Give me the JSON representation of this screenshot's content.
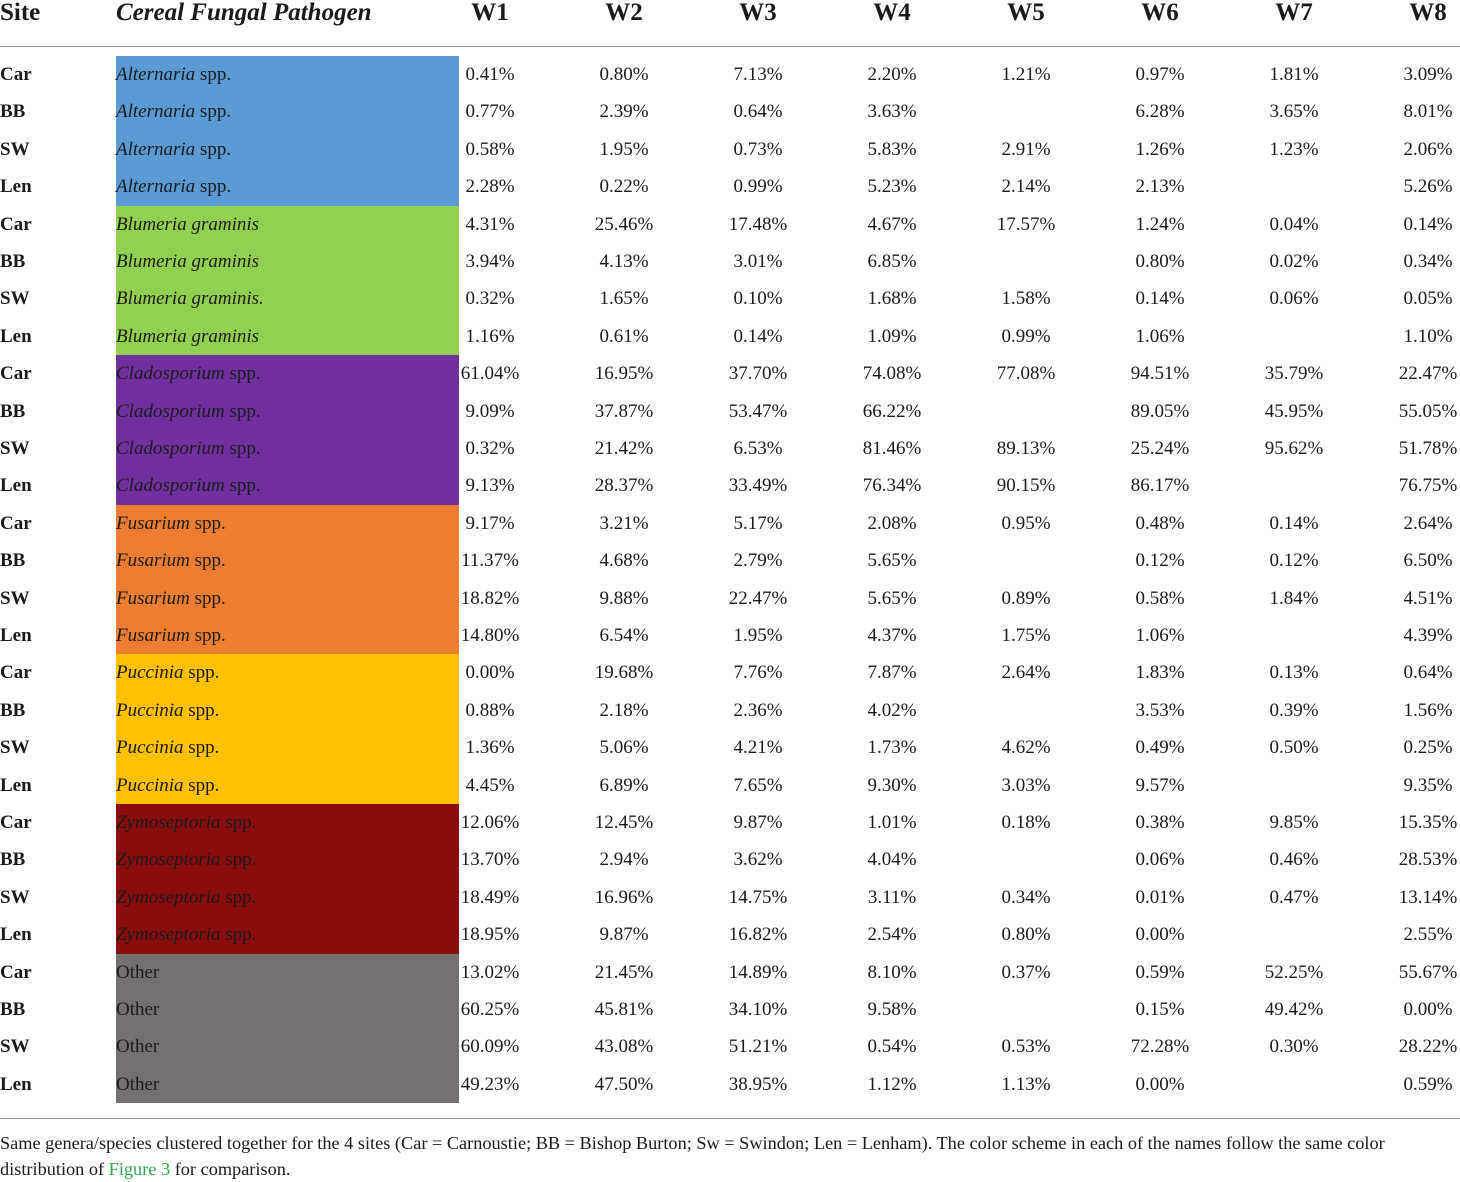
{
  "header": {
    "site": "Site",
    "pathogen": "Cereal Fungal Pathogen",
    "weeks": [
      "W1",
      "W2",
      "W3",
      "W4",
      "W5",
      "W6",
      "W7",
      "W8"
    ]
  },
  "colors": {
    "Alternaria": "#5b9bd5",
    "Blumeria": "#92d050",
    "Cladosporium": "#7030a0",
    "Fusarium": "#ed7d31",
    "Puccinia": "#ffc000",
    "Zymoseptoria": "#8b0e0e",
    "Other": "#767171"
  },
  "rows": [
    {
      "site": "Car",
      "genus": "Alternaria",
      "name": "Alternaria",
      "suffix": " spp.",
      "values": [
        "0.41%",
        "0.80%",
        "7.13%",
        "2.20%",
        "1.21%",
        "0.97%",
        "1.81%",
        "3.09%"
      ]
    },
    {
      "site": "BB",
      "genus": "Alternaria",
      "name": "Alternaria",
      "suffix": " spp.",
      "values": [
        "0.77%",
        "2.39%",
        "0.64%",
        "3.63%",
        "",
        "6.28%",
        "3.65%",
        "8.01%"
      ]
    },
    {
      "site": "SW",
      "genus": "Alternaria",
      "name": "Alternaria",
      "suffix": " spp.",
      "values": [
        "0.58%",
        "1.95%",
        "0.73%",
        "5.83%",
        "2.91%",
        "1.26%",
        "1.23%",
        "2.06%"
      ]
    },
    {
      "site": "Len",
      "genus": "Alternaria",
      "name": "Alternaria",
      "suffix": " spp.",
      "values": [
        "2.28%",
        "0.22%",
        "0.99%",
        "5.23%",
        "2.14%",
        "2.13%",
        "",
        "5.26%"
      ]
    },
    {
      "site": "Car",
      "genus": "Blumeria",
      "name": "Blumeria graminis",
      "suffix": "",
      "values": [
        "4.31%",
        "25.46%",
        "17.48%",
        "4.67%",
        "17.57%",
        "1.24%",
        "0.04%",
        "0.14%"
      ]
    },
    {
      "site": "BB",
      "genus": "Blumeria",
      "name": "Blumeria graminis",
      "suffix": "",
      "values": [
        "3.94%",
        "4.13%",
        "3.01%",
        "6.85%",
        "",
        "0.80%",
        "0.02%",
        "0.34%"
      ]
    },
    {
      "site": "SW",
      "genus": "Blumeria",
      "name": "Blumeria graminis.",
      "suffix": "",
      "values": [
        "0.32%",
        "1.65%",
        "0.10%",
        "1.68%",
        "1.58%",
        "0.14%",
        "0.06%",
        "0.05%"
      ]
    },
    {
      "site": "Len",
      "genus": "Blumeria",
      "name": "Blumeria graminis",
      "suffix": "",
      "values": [
        "1.16%",
        "0.61%",
        "0.14%",
        "1.09%",
        "0.99%",
        "1.06%",
        "",
        "1.10%"
      ]
    },
    {
      "site": "Car",
      "genus": "Cladosporium",
      "name": "Cladosporium",
      "suffix": " spp.",
      "values": [
        "61.04%",
        "16.95%",
        "37.70%",
        "74.08%",
        "77.08%",
        "94.51%",
        "35.79%",
        "22.47%"
      ]
    },
    {
      "site": "BB",
      "genus": "Cladosporium",
      "name": "Cladosporium",
      "suffix": " spp.",
      "values": [
        "9.09%",
        "37.87%",
        "53.47%",
        "66.22%",
        "",
        "89.05%",
        "45.95%",
        "55.05%"
      ]
    },
    {
      "site": "SW",
      "genus": "Cladosporium",
      "name": "Cladosporium",
      "suffix": " spp.",
      "values": [
        "0.32%",
        "21.42%",
        "6.53%",
        "81.46%",
        "89.13%",
        "25.24%",
        "95.62%",
        "51.78%"
      ]
    },
    {
      "site": "Len",
      "genus": "Cladosporium",
      "name": "Cladosporium",
      "suffix": " spp.",
      "values": [
        "9.13%",
        "28.37%",
        "33.49%",
        "76.34%",
        "90.15%",
        "86.17%",
        "",
        "76.75%"
      ]
    },
    {
      "site": "Car",
      "genus": "Fusarium",
      "name": "Fusarium",
      "suffix": " spp.",
      "values": [
        "9.17%",
        "3.21%",
        "5.17%",
        "2.08%",
        "0.95%",
        "0.48%",
        "0.14%",
        "2.64%"
      ]
    },
    {
      "site": "BB",
      "genus": "Fusarium",
      "name": "Fusarium",
      "suffix": " spp.",
      "values": [
        "11.37%",
        "4.68%",
        "2.79%",
        "5.65%",
        "",
        "0.12%",
        "0.12%",
        "6.50%"
      ]
    },
    {
      "site": "SW",
      "genus": "Fusarium",
      "name": "Fusarium",
      "suffix": " spp.",
      "values": [
        "18.82%",
        "9.88%",
        "22.47%",
        "5.65%",
        "0.89%",
        "0.58%",
        "1.84%",
        "4.51%"
      ]
    },
    {
      "site": "Len",
      "genus": "Fusarium",
      "name": "Fusarium",
      "suffix": " spp.",
      "values": [
        "14.80%",
        "6.54%",
        "1.95%",
        "4.37%",
        "1.75%",
        "1.06%",
        "",
        "4.39%"
      ]
    },
    {
      "site": "Car",
      "genus": "Puccinia",
      "name": "Puccinia",
      "suffix": " spp.",
      "values": [
        "0.00%",
        "19.68%",
        "7.76%",
        "7.87%",
        "2.64%",
        "1.83%",
        "0.13%",
        "0.64%"
      ]
    },
    {
      "site": "BB",
      "genus": "Puccinia",
      "name": "Puccinia",
      "suffix": " spp.",
      "values": [
        "0.88%",
        "2.18%",
        "2.36%",
        "4.02%",
        "",
        "3.53%",
        "0.39%",
        "1.56%"
      ]
    },
    {
      "site": "SW",
      "genus": "Puccinia",
      "name": "Puccinia",
      "suffix": " spp.",
      "values": [
        "1.36%",
        "5.06%",
        "4.21%",
        "1.73%",
        "4.62%",
        "0.49%",
        "0.50%",
        "0.25%"
      ]
    },
    {
      "site": "Len",
      "genus": "Puccinia",
      "name": "Puccinia",
      "suffix": " spp.",
      "values": [
        "4.45%",
        "6.89%",
        "7.65%",
        "9.30%",
        "3.03%",
        "9.57%",
        "",
        "9.35%"
      ]
    },
    {
      "site": "Car",
      "genus": "Zymoseptoria",
      "name": "Zymoseptoria",
      "suffix": " spp.",
      "values": [
        "12.06%",
        "12.45%",
        "9.87%",
        "1.01%",
        "0.18%",
        "0.38%",
        "9.85%",
        "15.35%"
      ]
    },
    {
      "site": "BB",
      "genus": "Zymoseptoria",
      "name": "Zymoseptoria",
      "suffix": " spp.",
      "values": [
        "13.70%",
        "2.94%",
        "3.62%",
        "4.04%",
        "",
        "0.06%",
        "0.46%",
        "28.53%"
      ]
    },
    {
      "site": "SW",
      "genus": "Zymoseptoria",
      "name": "Zymoseptoria",
      "suffix": " spp.",
      "values": [
        "18.49%",
        "16.96%",
        "14.75%",
        "3.11%",
        "0.34%",
        "0.01%",
        "0.47%",
        "13.14%"
      ]
    },
    {
      "site": "Len",
      "genus": "Zymoseptoria",
      "name": "Zymoseptoria",
      "suffix": " spp.",
      "values": [
        "18.95%",
        "9.87%",
        "16.82%",
        "2.54%",
        "0.80%",
        "0.00%",
        "",
        "2.55%"
      ]
    },
    {
      "site": "Car",
      "genus": "Other",
      "name": "",
      "suffix": "Other",
      "values": [
        "13.02%",
        "21.45%",
        "14.89%",
        "8.10%",
        "0.37%",
        "0.59%",
        "52.25%",
        "55.67%"
      ]
    },
    {
      "site": "BB",
      "genus": "Other",
      "name": "",
      "suffix": "Other",
      "values": [
        "60.25%",
        "45.81%",
        "34.10%",
        "9.58%",
        "",
        "0.15%",
        "49.42%",
        "0.00%"
      ]
    },
    {
      "site": "SW",
      "genus": "Other",
      "name": "",
      "suffix": "Other",
      "values": [
        "60.09%",
        "43.08%",
        "51.21%",
        "0.54%",
        "0.53%",
        "72.28%",
        "0.30%",
        "28.22%"
      ]
    },
    {
      "site": "Len",
      "genus": "Other",
      "name": "",
      "suffix": "Other",
      "values": [
        "49.23%",
        "47.50%",
        "38.95%",
        "1.12%",
        "1.13%",
        "0.00%",
        "",
        "0.59%"
      ]
    }
  ],
  "caption": {
    "before": "Same genera/species clustered together for the 4 sites (Car = Carnoustie; BB = Bishop Burton; Sw = Swindon; Len = Lenham). The color scheme in each of the names follow the same color distribution of ",
    "link": "Figure 3",
    "after": " for comparison."
  }
}
